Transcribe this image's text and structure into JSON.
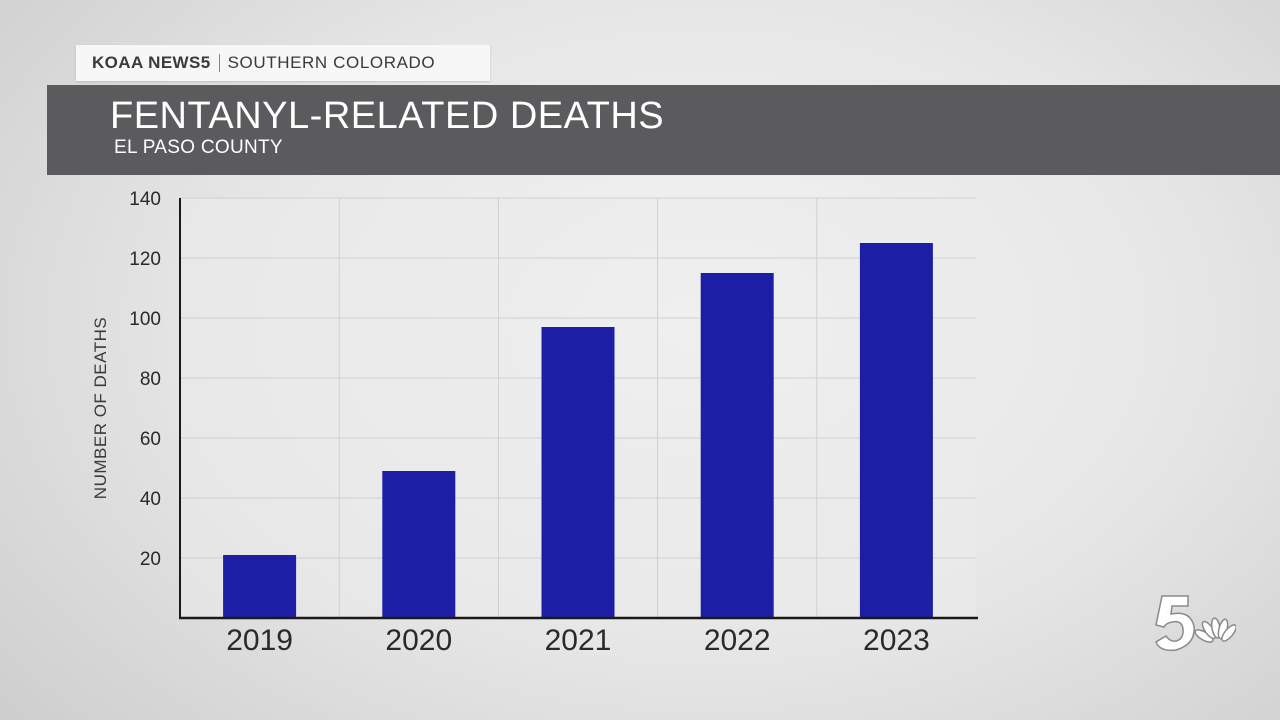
{
  "header": {
    "station": "KOAA NEWS5",
    "region": "SOUTHERN COLORADO",
    "title": "FENTANYL-RELATED DEATHS",
    "subtitle": "EL PASO COUNTY"
  },
  "logo": {
    "icon": "nbc-5-peacock-logo"
  },
  "colors": {
    "bar": "#1c1fa6",
    "title_bar": "#5b5b5e",
    "grid": "#d0d0d0"
  },
  "chart_data": {
    "type": "bar",
    "categories": [
      "2019",
      "2020",
      "2021",
      "2022",
      "2023"
    ],
    "values": [
      21,
      49,
      97,
      115,
      125
    ],
    "ylabel": "NUMBER OF DEATHS",
    "xlabel": "",
    "ylim": [
      0,
      140
    ],
    "yticks": [
      20,
      40,
      60,
      80,
      100,
      120,
      140
    ],
    "grid": true
  }
}
